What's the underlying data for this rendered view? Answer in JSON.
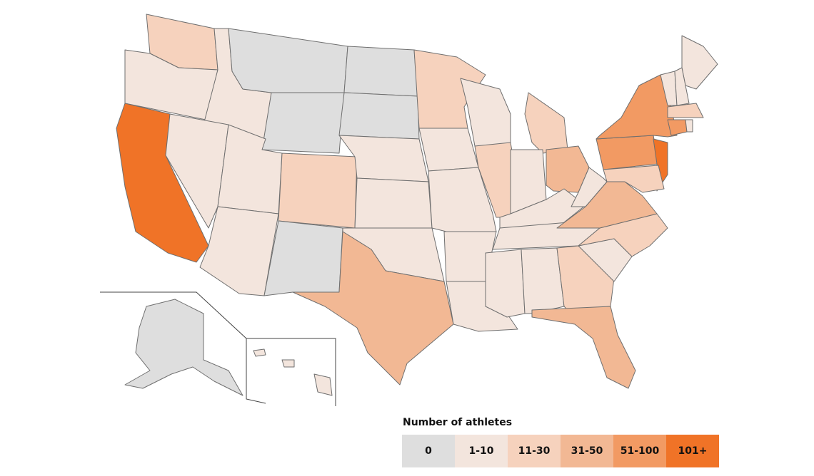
{
  "map": {
    "legend": {
      "title": "Number of athletes",
      "bins": [
        {
          "label": "0",
          "color": "#dedede"
        },
        {
          "label": "1-10",
          "color": "#f3e5dd"
        },
        {
          "label": "11-30",
          "color": "#f6d2bd"
        },
        {
          "label": "31-50",
          "color": "#f2b894"
        },
        {
          "label": "51-100",
          "color": "#f29a63"
        },
        {
          "label": "101+",
          "color": "#f07327"
        }
      ]
    },
    "state_fills": [
      "#f6d2bd",
      "#f3e5dd",
      "#f07327",
      "#f3e5dd",
      "#f3e5dd",
      "#dedede",
      "#dedede",
      "#f3e5dd",
      "#f3e5dd",
      "#f6d2bd",
      "#dedede",
      "#dedede",
      "#dedede",
      "#f3e5dd",
      "#f3e5dd",
      "#f3e5dd",
      "#f2b894",
      "#f6d2bd",
      "#f3e5dd",
      "#f3e5dd",
      "#f3e5dd",
      "#f3e5dd",
      "#f3e5dd",
      "#f6d2bd",
      "#f6d2bd",
      "#f3e5dd",
      "#f2b894",
      "#f3e5dd",
      "#f3e5dd",
      "#f3e5dd",
      "#f3e5dd",
      "#f6d2bd",
      "#f2b894",
      "#f3e5dd",
      "#f6d2bd",
      "#f2b894",
      "#f3e5dd",
      "#f29a63",
      "#f29a63",
      "#f07327",
      "#f6d2bd",
      "#f3e5dd",
      "#f3e5dd",
      "#f3e5dd",
      "#f6d2bd",
      "#f29a63",
      "#f3e5dd",
      "#dedede",
      "#f3e5dd",
      "#f3e5dd",
      "#f3e5dd"
    ]
  }
}
